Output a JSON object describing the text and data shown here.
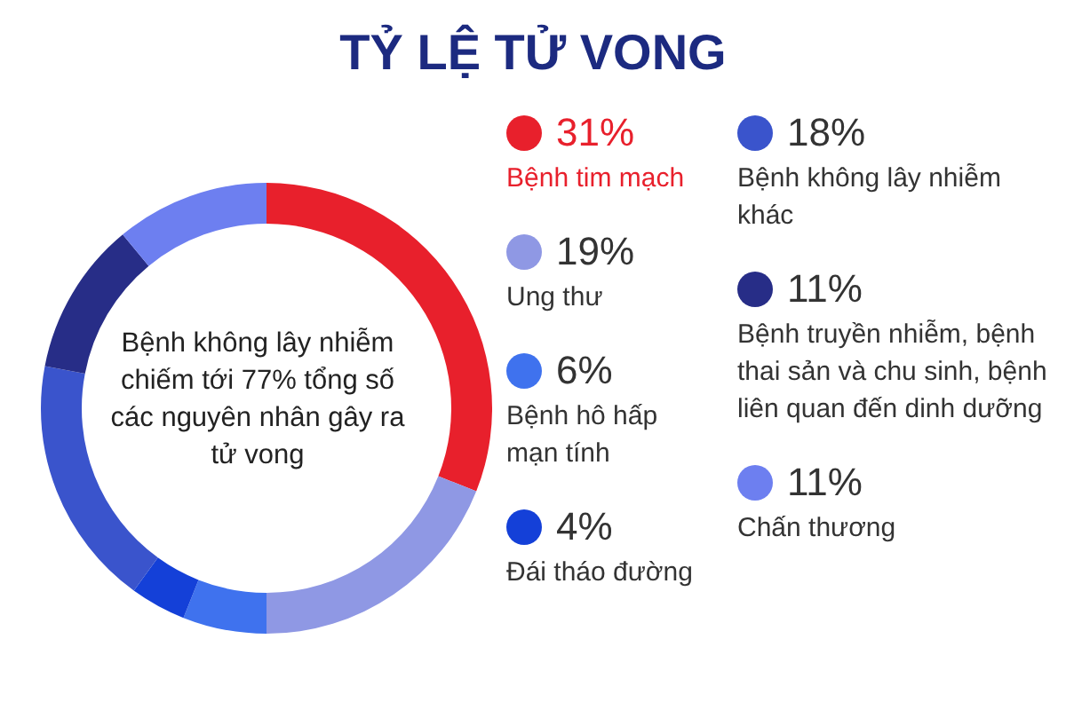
{
  "chart_data": {
    "type": "donut",
    "title": "TỶ LỆ TỬ VONG",
    "categories": [
      "Bệnh tim mạch",
      "Ung thư",
      "Bệnh hô hấp mạn tính",
      "Đái tháo đường",
      "Bệnh không lây nhiễm khác",
      "Bệnh truyền nhiễm, bệnh thai sản và chu sinh, bệnh liên quan đến dinh dưỡng",
      "Chấn thương"
    ],
    "values": [
      31,
      19,
      6,
      4,
      18,
      11,
      11
    ],
    "value_labels": [
      "31%",
      "19%",
      "6%",
      "4%",
      "18%",
      "11%",
      "11%"
    ],
    "colors": [
      "#e8202c",
      "#8f98e4",
      "#3f72ee",
      "#1440d8",
      "#3a54cc",
      "#272d87",
      "#6d7ff0"
    ],
    "legend": "right",
    "annotations": [
      "Bệnh không lây nhiễm chiếm tới 77% tổng số các nguyên nhân gây ra tử vong"
    ]
  }
}
